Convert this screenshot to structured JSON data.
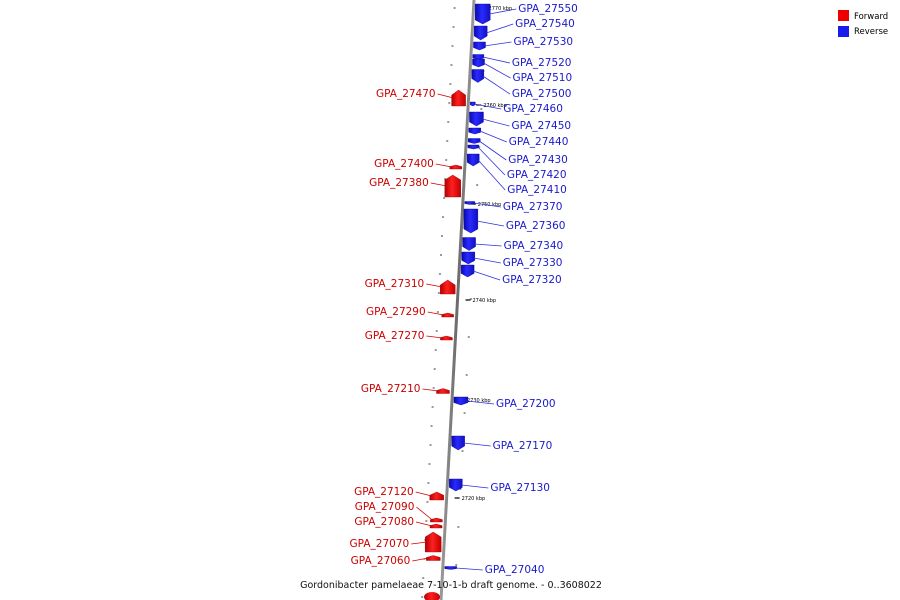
{
  "legend": {
    "forward_label": "Forward",
    "reverse_label": "Reverse",
    "forward_color": "#ee0000",
    "reverse_color": "#1a1aee"
  },
  "caption": "Gordonibacter pamelaeae 7-10-1-b draft genome. - 0..3608022",
  "scale_labels": [
    "2770 kbp",
    "2760 kbp",
    "2750 kbp",
    "2740 kbp",
    "2730 kbp",
    "2720 kbp"
  ],
  "reverse_genes": [
    "GPA_27550",
    "GPA_27540",
    "GPA_27530",
    "GPA_27520",
    "GPA_27510",
    "GPA_27500",
    "GPA_27460",
    "GPA_27450",
    "GPA_27440",
    "GPA_27430",
    "GPA_27420",
    "GPA_27410",
    "GPA_27370",
    "GPA_27360",
    "GPA_27340",
    "GPA_27330",
    "GPA_27320",
    "GPA_27200",
    "GPA_27170",
    "GPA_27130",
    "GPA_27040"
  ],
  "forward_genes": [
    "GPA_27470",
    "GPA_27400",
    "GPA_27380",
    "GPA_27310",
    "GPA_27290",
    "GPA_27270",
    "GPA_27210",
    "GPA_27120",
    "GPA_27090",
    "GPA_27080",
    "GPA_27070",
    "GPA_27060"
  ]
}
